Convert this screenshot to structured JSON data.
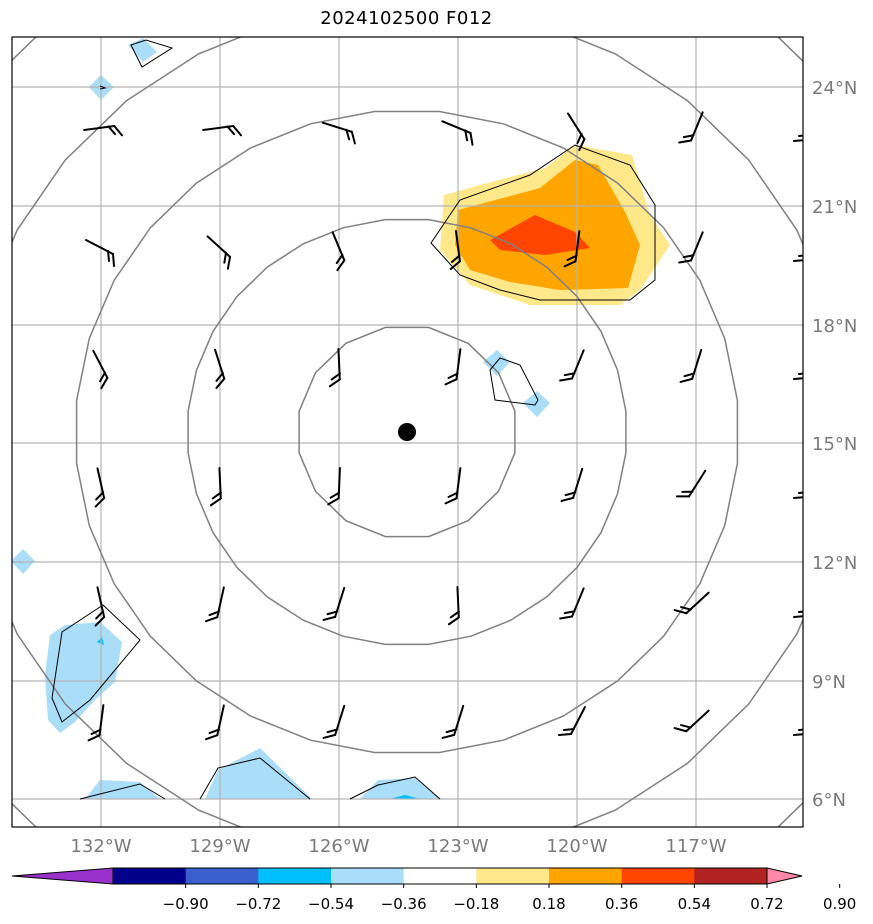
{
  "title": "2024102500 F012",
  "colors": {
    "grid": "#b3b3b3",
    "circle": "#808080",
    "frame": "#000000",
    "light_blue": "#aaddf8",
    "cyan": "#00bfff",
    "light_yellow": "#ffe88a",
    "orange": "#ffa500",
    "red_orange": "#ff4500",
    "center_dot": "#000000"
  },
  "latitude_labels": [
    "24°N",
    "21°N",
    "18°N",
    "15°N",
    "12°N",
    "9°N",
    "6°N"
  ],
  "longitude_labels": [
    "132°W",
    "129°W",
    "126°W",
    "123°W",
    "120°W",
    "117°W"
  ],
  "colorbar": {
    "tick_labels": [
      "−0.90",
      "−0.72",
      "−0.54",
      "−0.36",
      "−0.18",
      "0.18",
      "0.36",
      "0.54",
      "0.72",
      "0.90"
    ],
    "colors": [
      "#9932cc",
      "#00008b",
      "#3a5fcd",
      "#00bfff",
      "#aaddf8",
      "#ffffff",
      "#ffe88a",
      "#ffa500",
      "#ff4500",
      "#b22222",
      "#ff88aa"
    ]
  },
  "center_marker": {
    "lat": 15.2,
    "lon": -124.7
  },
  "map_extent": {
    "lon_min": -134.5,
    "lon_max": -114.5,
    "lat_min": 5.2,
    "lat_max": 25.2
  }
}
